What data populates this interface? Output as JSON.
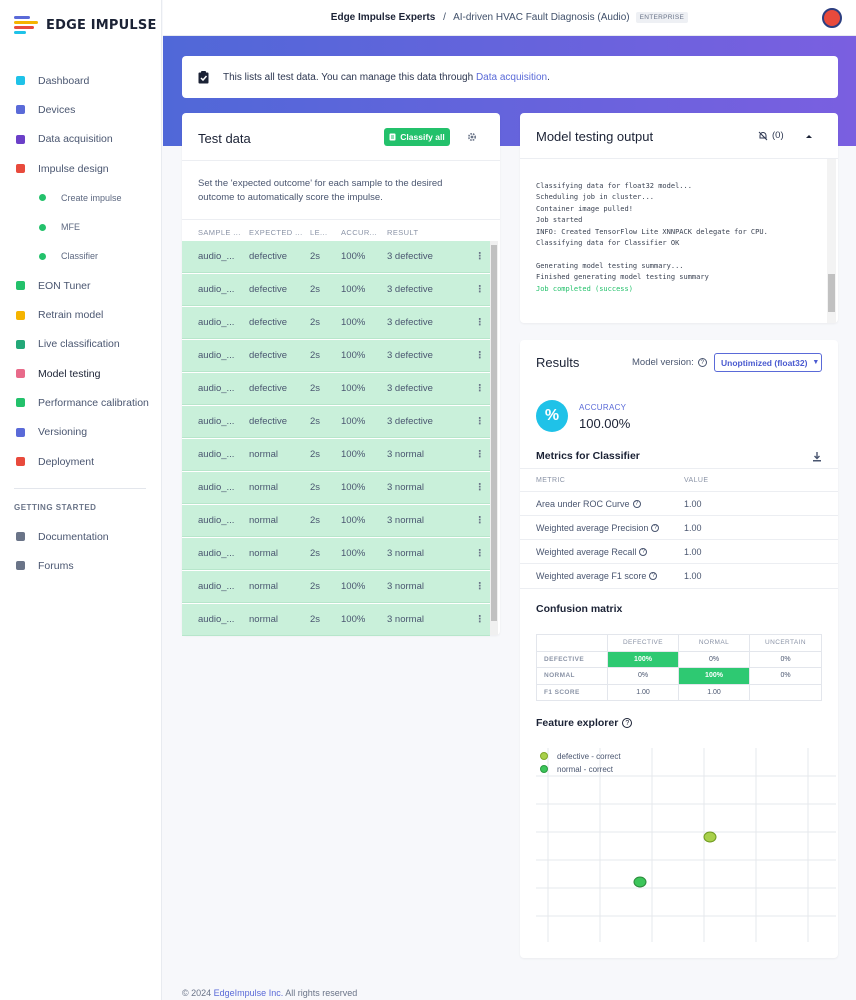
{
  "brand": {
    "name": "EDGE IMPULSE"
  },
  "sidebar": {
    "items": [
      {
        "label": "Dashboard",
        "icon": "monitor-icon",
        "color": "#1fc2e8"
      },
      {
        "label": "Devices",
        "icon": "chip-icon",
        "color": "#5a6ad8"
      },
      {
        "label": "Data acquisition",
        "icon": "database-icon",
        "color": "#6b3fc8"
      },
      {
        "label": "Impulse design",
        "icon": "pulse-icon",
        "color": "#e84a3c"
      }
    ],
    "subitems": [
      {
        "label": "Create impulse"
      },
      {
        "label": "MFE"
      },
      {
        "label": "Classifier"
      }
    ],
    "items2": [
      {
        "label": "EON Tuner",
        "icon": "compass-icon",
        "color": "#23c16b"
      },
      {
        "label": "Retrain model",
        "icon": "shuffle-icon",
        "color": "#f5b400"
      },
      {
        "label": "Live classification",
        "icon": "live-icon",
        "color": "#23a878"
      },
      {
        "label": "Model testing",
        "icon": "clipboard-icon",
        "color": "#e86a8a"
      },
      {
        "label": "Performance calibration",
        "icon": "factory-icon",
        "color": "#23c16b"
      },
      {
        "label": "Versioning",
        "icon": "branch-icon",
        "color": "#5a6ad8"
      },
      {
        "label": "Deployment",
        "icon": "box-icon",
        "color": "#e84a3c"
      }
    ],
    "getting_started": "GETTING STARTED",
    "items3": [
      {
        "label": "Documentation",
        "icon": "rocket-icon"
      },
      {
        "label": "Forums",
        "icon": "chat-icon"
      }
    ]
  },
  "topbar": {
    "org": "Edge Impulse Experts",
    "separator": "/",
    "project": "AI-driven HVAC Fault Diagnosis (Audio)",
    "badge": "ENTERPRISE"
  },
  "info": {
    "text": "This lists all test data. You can manage this data through ",
    "link": "Data acquisition",
    "end": "."
  },
  "test_data": {
    "title": "Test data",
    "classify_label": "Classify all",
    "description": "Set the 'expected outcome' for each sample to the desired outcome to automatically score the impulse.",
    "columns": [
      "SAMPLE ...",
      "EXPECTED ...",
      "LE...",
      "ACCUR...",
      "RESULT"
    ],
    "rows": [
      [
        "audio_...",
        "defective",
        "2s",
        "100%",
        "3 defective"
      ],
      [
        "audio_...",
        "defective",
        "2s",
        "100%",
        "3 defective"
      ],
      [
        "audio_...",
        "defective",
        "2s",
        "100%",
        "3 defective"
      ],
      [
        "audio_...",
        "defective",
        "2s",
        "100%",
        "3 defective"
      ],
      [
        "audio_...",
        "defective",
        "2s",
        "100%",
        "3 defective"
      ],
      [
        "audio_...",
        "defective",
        "2s",
        "100%",
        "3 defective"
      ],
      [
        "audio_...",
        "normal",
        "2s",
        "100%",
        "3 normal"
      ],
      [
        "audio_...",
        "normal",
        "2s",
        "100%",
        "3 normal"
      ],
      [
        "audio_...",
        "normal",
        "2s",
        "100%",
        "3 normal"
      ],
      [
        "audio_...",
        "normal",
        "2s",
        "100%",
        "3 normal"
      ],
      [
        "audio_...",
        "normal",
        "2s",
        "100%",
        "3 normal"
      ],
      [
        "audio_...",
        "normal",
        "2s",
        "100%",
        "3 normal"
      ]
    ]
  },
  "model_output": {
    "title": "Model testing output",
    "notif_count": "(0)",
    "log": "Classifying data for float32 model...\nScheduling job in cluster...\nContainer image pulled!\nJob started\nINFO: Created TensorFlow Lite XNNPACK delegate for CPU.\nClassifying data for Classifier OK\n\nGenerating model testing summary...\nFinished generating model testing summary\n",
    "log_success": "Job completed (success)"
  },
  "results": {
    "title": "Results",
    "model_version_label": "Model version:",
    "model_version_value": "Unoptimized (float32)",
    "accuracy_label": "ACCURACY",
    "accuracy_value": "100.00%",
    "accuracy_icon": "%",
    "metrics_title": "Metrics for Classifier",
    "metric_col": "METRIC",
    "value_col": "VALUE",
    "metrics": [
      {
        "name": "Area under ROC Curve",
        "value": "1.00"
      },
      {
        "name": "Weighted average Precision",
        "value": "1.00"
      },
      {
        "name": "Weighted average Recall",
        "value": "1.00"
      },
      {
        "name": "Weighted average F1 score",
        "value": "1.00"
      }
    ],
    "cm_title": "Confusion matrix",
    "cm_headers": [
      "DEFECTIVE",
      "NORMAL",
      "UNCERTAIN"
    ],
    "cm_rows": [
      {
        "label": "DEFECTIVE",
        "cells": [
          "100%",
          "0%",
          "0%"
        ]
      },
      {
        "label": "NORMAL",
        "cells": [
          "0%",
          "100%",
          "0%"
        ]
      },
      {
        "label": "F1 SCORE",
        "cells": [
          "1.00",
          "1.00",
          ""
        ]
      }
    ],
    "fe_title": "Feature explorer",
    "legend": [
      {
        "label": "defective - correct",
        "color": "#a8d04a"
      },
      {
        "label": "normal - correct",
        "color": "#3cc55a"
      }
    ]
  },
  "footer": {
    "prefix": "© 2024 ",
    "link": "EdgeImpulse Inc.",
    "suffix": " All rights reserved"
  }
}
